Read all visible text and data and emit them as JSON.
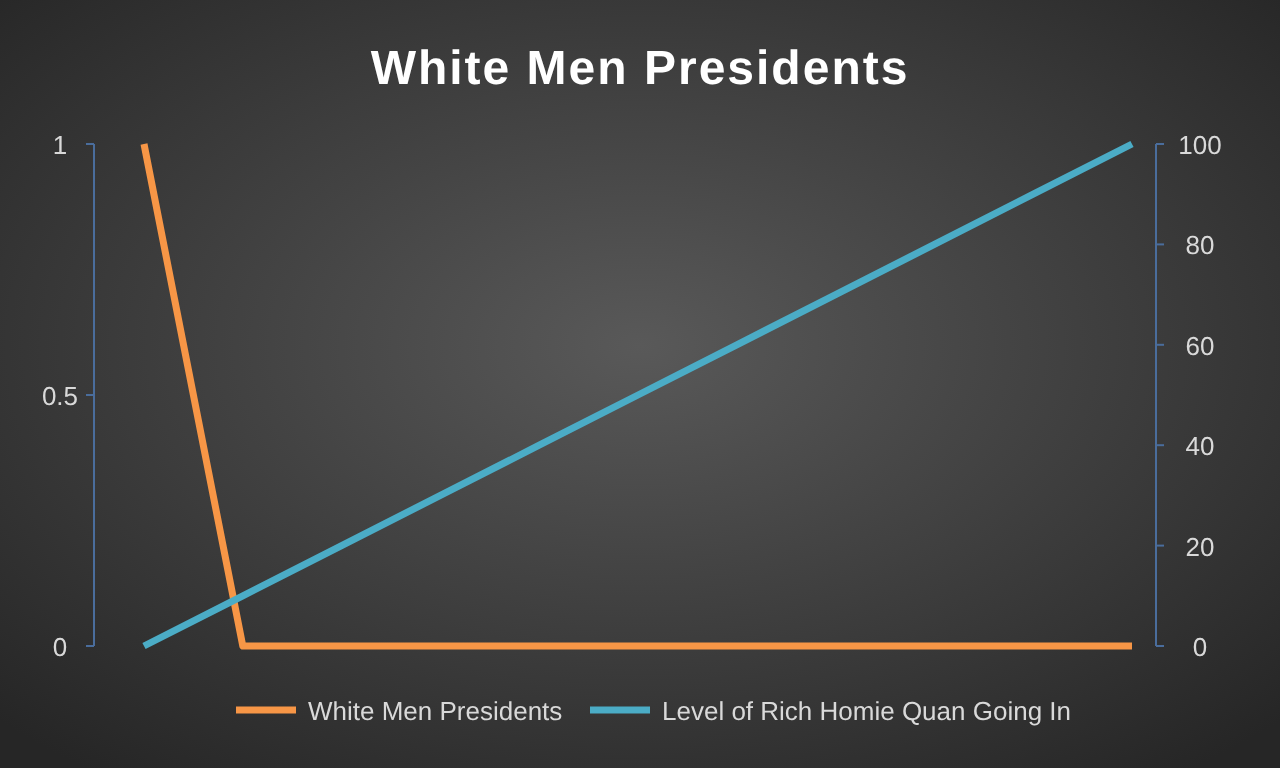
{
  "chart_data": {
    "type": "line",
    "title": "White Men Presidents",
    "categories": [
      null,
      null,
      null,
      null,
      null,
      null,
      null,
      null,
      null,
      null,
      null
    ],
    "series": [
      {
        "name": "White Men Presidents",
        "color": "#f79646",
        "values": [
          1,
          0,
          0,
          0,
          0,
          0,
          0,
          0,
          0,
          0,
          0
        ]
      },
      {
        "name": "Level of Rich Homie Quan Going In",
        "color": "#4bacc6",
        "axis": "y2",
        "values": [
          0,
          10,
          20,
          30,
          40,
          50,
          60,
          70,
          80,
          90,
          100
        ]
      }
    ],
    "ylim": [
      0,
      1
    ],
    "yticks": [
      0,
      0.5,
      1
    ],
    "y2lim": [
      0,
      100
    ],
    "y2ticks": [
      0,
      20,
      40,
      60,
      80,
      100
    ],
    "legend": "bottom",
    "grid": false,
    "marker": "none",
    "line_style": "solid"
  }
}
